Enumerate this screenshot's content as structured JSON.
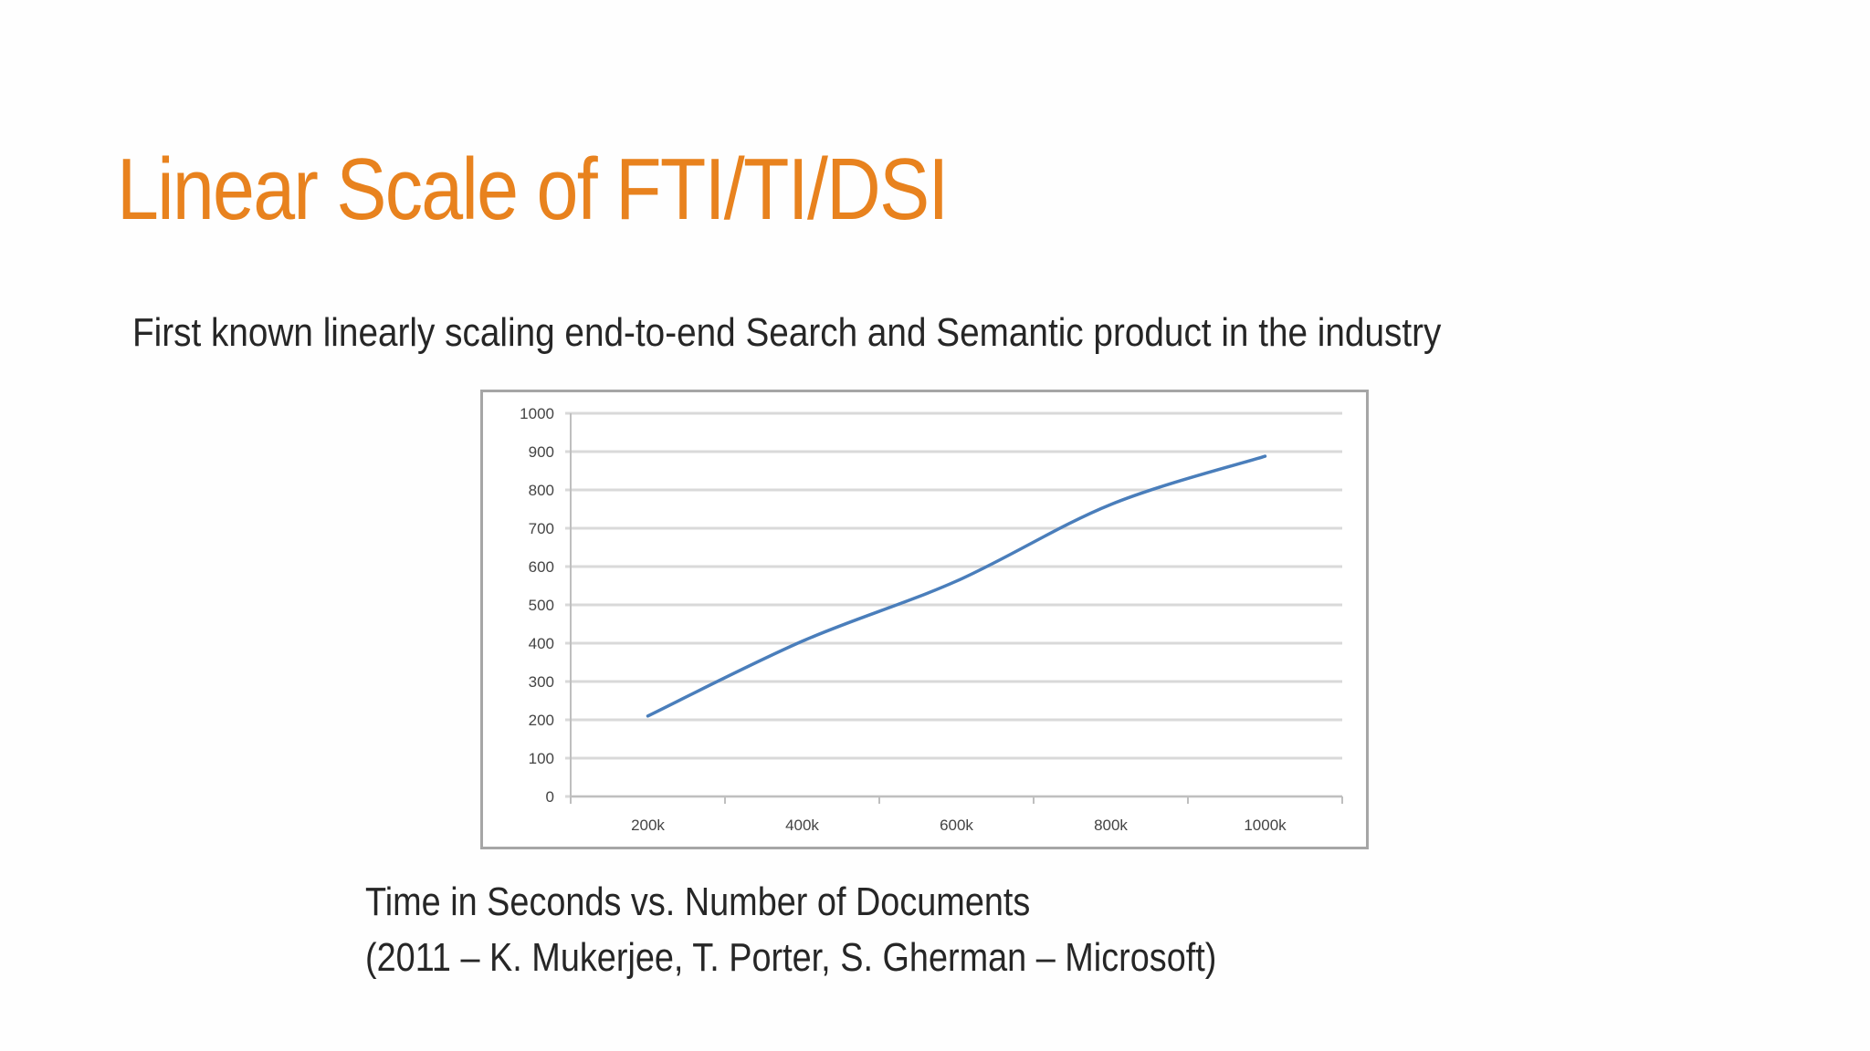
{
  "slide": {
    "title": "Linear Scale of FTI/TI/DSI",
    "subtitle": "First known linearly scaling end-to-end Search and Semantic product in the industry",
    "caption_line1": "Time in Seconds vs. Number of Documents",
    "caption_line2": "(2011 – K. Mukerjee, T. Porter, S. Gherman – Microsoft)"
  },
  "colors": {
    "title": "#E8821E",
    "body_text": "#262626",
    "series_line": "#4A7EBB",
    "gridline": "#D9D9D9",
    "axis": "#BFBFBF",
    "chart_border": "#A6A6A6",
    "background": "#FEFEFE"
  },
  "chart_data": {
    "type": "line",
    "title": "Time in Seconds vs. Number of Documents",
    "xlabel": "Number of Documents",
    "ylabel": "Time in Seconds",
    "categories": [
      "200k",
      "400k",
      "600k",
      "800k",
      "1000k"
    ],
    "series": [
      {
        "name": "Time in Seconds",
        "values": [
          210,
          405,
          562,
          762,
          888
        ]
      }
    ],
    "yticks": [
      0,
      100,
      200,
      300,
      400,
      500,
      600,
      700,
      800,
      900,
      1000
    ],
    "ylim": [
      0,
      1000
    ],
    "grid": "horizontal",
    "legend": "none",
    "smoothed": true
  }
}
